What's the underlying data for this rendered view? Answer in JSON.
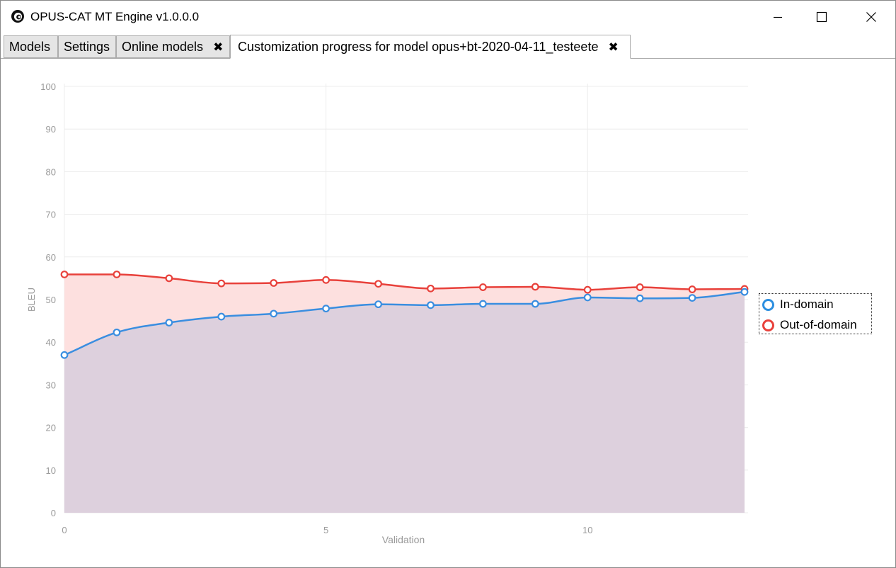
{
  "window": {
    "title": "OPUS-CAT MT Engine v1.0.0.0"
  },
  "tabs": [
    {
      "label": "Models",
      "closable": false,
      "active": false
    },
    {
      "label": "Settings",
      "closable": false,
      "active": false
    },
    {
      "label": "Online models",
      "closable": true,
      "active": false
    },
    {
      "label": "Customization progress for model opus+bt-2020-04-11_testeete",
      "closable": true,
      "active": true
    }
  ],
  "legend": {
    "items": [
      {
        "label": "In-domain",
        "color": "#2d8fe0"
      },
      {
        "label": "Out-of-domain",
        "color": "#e8413b"
      }
    ]
  },
  "chart_data": {
    "type": "line",
    "xlabel": "Validation",
    "ylabel": "BLEU",
    "xlim": [
      0,
      13
    ],
    "ylim": [
      0,
      100
    ],
    "x_ticks": [
      0,
      5,
      10
    ],
    "y_ticks": [
      0,
      10,
      20,
      30,
      40,
      50,
      60,
      70,
      80,
      90,
      100
    ],
    "grid": true,
    "legend_position": "right",
    "x": [
      0,
      1,
      2,
      3,
      4,
      5,
      6,
      7,
      8,
      9,
      10,
      11,
      12,
      13
    ],
    "series": [
      {
        "name": "In-domain",
        "color": "#3a8ee0",
        "fill": "#ddd0dd",
        "values": [
          37.0,
          42.3,
          44.6,
          46.0,
          46.7,
          47.9,
          48.9,
          48.7,
          49.0,
          49.0,
          50.5,
          50.3,
          50.4,
          51.8
        ]
      },
      {
        "name": "Out-of-domain",
        "color": "#e8413b",
        "fill": "#fde0df",
        "values": [
          55.9,
          55.9,
          55.0,
          53.8,
          53.9,
          54.6,
          53.7,
          52.6,
          52.9,
          53.0,
          52.3,
          52.9,
          52.4,
          52.5
        ]
      }
    ]
  }
}
